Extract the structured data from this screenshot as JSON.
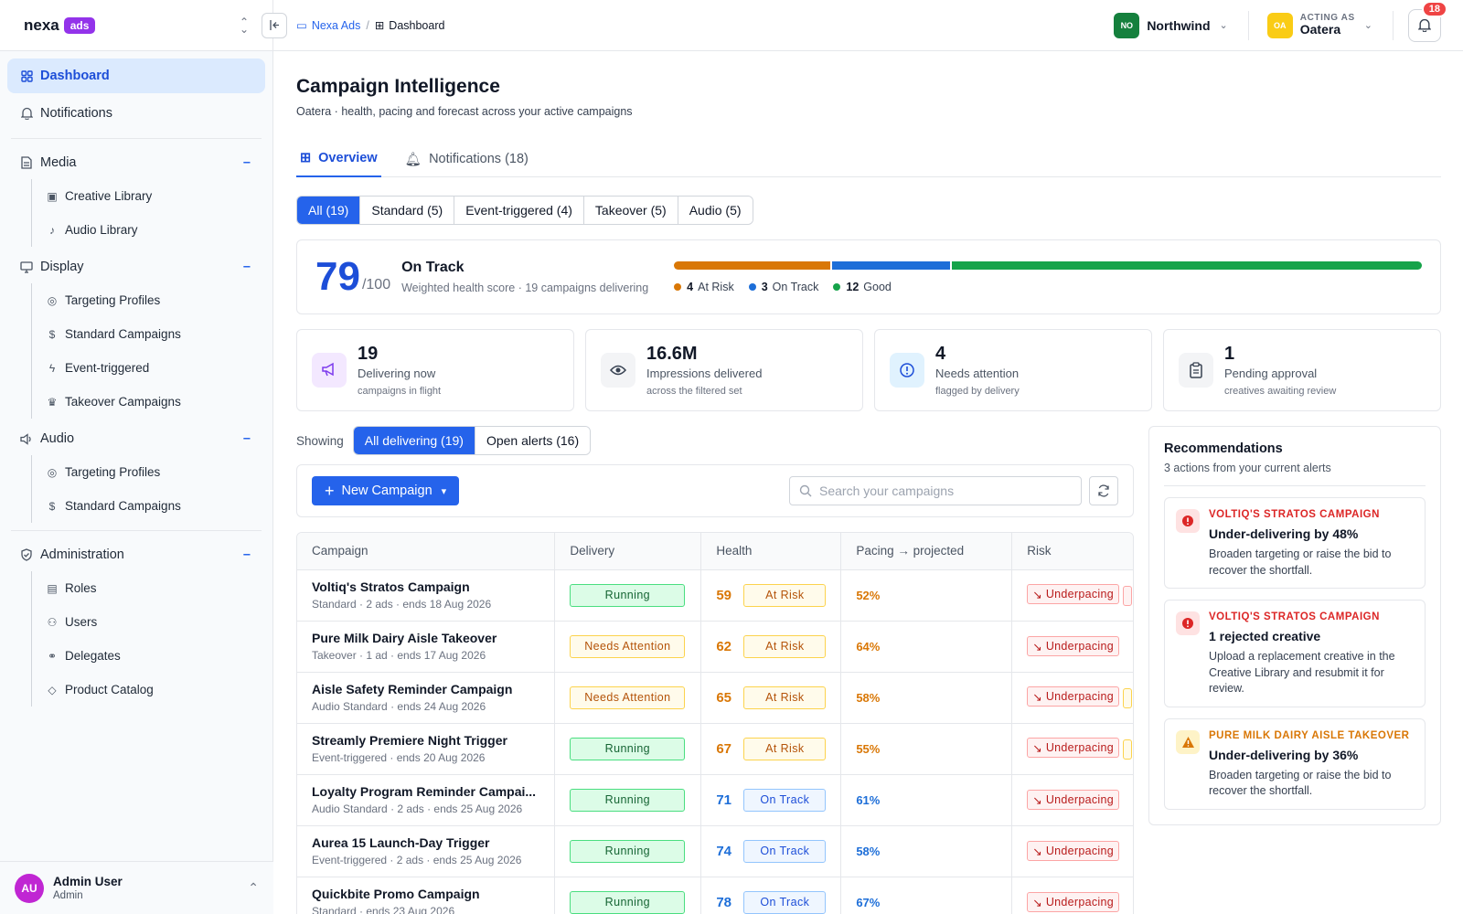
{
  "brand": {
    "name": "nexa",
    "badge": "ads"
  },
  "sidebar": {
    "top": [
      {
        "label": "Dashboard",
        "icon": "grid-icon",
        "active": true
      },
      {
        "label": "Notifications",
        "icon": "bell-icon"
      }
    ],
    "groups": [
      {
        "label": "Media",
        "icon": "document-icon",
        "items": [
          {
            "label": "Creative Library",
            "icon": "image-icon"
          },
          {
            "label": "Audio Library",
            "icon": "music-note-icon"
          }
        ]
      },
      {
        "label": "Display",
        "icon": "monitor-icon",
        "items": [
          {
            "label": "Targeting Profiles",
            "icon": "target-icon"
          },
          {
            "label": "Standard Campaigns",
            "icon": "dollar-icon"
          },
          {
            "label": "Event-triggered",
            "icon": "bolt-icon"
          },
          {
            "label": "Takeover Campaigns",
            "icon": "crown-icon"
          }
        ]
      },
      {
        "label": "Audio",
        "icon": "speaker-icon",
        "items": [
          {
            "label": "Targeting Profiles",
            "icon": "target-icon"
          },
          {
            "label": "Standard Campaigns",
            "icon": "dollar-icon"
          }
        ]
      },
      {
        "label": "Administration",
        "icon": "shield-check-icon",
        "items": [
          {
            "label": "Roles",
            "icon": "id-card-icon"
          },
          {
            "label": "Users",
            "icon": "users-icon"
          },
          {
            "label": "Delegates",
            "icon": "handshake-icon"
          },
          {
            "label": "Product Catalog",
            "icon": "tag-icon"
          }
        ]
      }
    ],
    "user": {
      "initials": "AU",
      "name": "Admin User",
      "role": "Admin"
    }
  },
  "topbar": {
    "breadcrumb": {
      "parent": "Nexa Ads",
      "current": "Dashboard"
    },
    "org": {
      "initials": "NO",
      "name": "Northwind"
    },
    "acting": {
      "label": "ACTING AS",
      "initials": "OA",
      "name": "Oatera"
    },
    "notifications_count": "18"
  },
  "page": {
    "title": "Campaign Intelligence",
    "subtitle": "Oatera · health, pacing and forecast across your active campaigns",
    "tabs": [
      {
        "label": "Overview",
        "active": true
      },
      {
        "label": "Notifications (18)"
      }
    ],
    "filters": [
      {
        "label": "All (19)",
        "active": true
      },
      {
        "label": "Standard (5)"
      },
      {
        "label": "Event-triggered (4)"
      },
      {
        "label": "Takeover (5)"
      },
      {
        "label": "Audio (5)"
      }
    ]
  },
  "health": {
    "score": "79",
    "out_of": "/100",
    "status": "On Track",
    "description": "Weighted health score · 19 campaigns delivering",
    "segments": [
      {
        "count": 4,
        "count_label": "4",
        "label": "At Risk",
        "color": "#d97706"
      },
      {
        "count": 3,
        "count_label": "3",
        "label": "On Track",
        "color": "#1d6ed8"
      },
      {
        "count": 12,
        "count_label": "12",
        "label": "Good",
        "color": "#16a34a"
      }
    ]
  },
  "stats": [
    {
      "value": "19",
      "label": "Delivering now",
      "sub": "campaigns in flight",
      "icon": "megaphone-icon",
      "color": "#7c3aed",
      "bg": "#f3e8ff"
    },
    {
      "value": "16.6M",
      "label": "Impressions delivered",
      "sub": "across the filtered set",
      "icon": "eye-icon",
      "color": "#374151",
      "bg": "#f3f4f6"
    },
    {
      "value": "4",
      "label": "Needs attention",
      "sub": "flagged by delivery",
      "icon": "alert-circle-icon",
      "color": "#1d4ed8",
      "bg": "#e0f2fe"
    },
    {
      "value": "1",
      "label": "Pending approval",
      "sub": "creatives awaiting review",
      "icon": "clipboard-icon",
      "color": "#374151",
      "bg": "#f3f4f6"
    }
  ],
  "showing": {
    "label": "Showing",
    "options": [
      {
        "label": "All delivering (19)",
        "active": true
      },
      {
        "label": "Open alerts (16)"
      }
    ]
  },
  "toolbar": {
    "new_label": "New Campaign",
    "search_placeholder": "Search your campaigns"
  },
  "table": {
    "columns": [
      "Campaign",
      "Delivery",
      "Health",
      "Pacing → projected",
      "Risk"
    ],
    "rows": [
      {
        "name": "Voltiq's Stratos Campaign",
        "meta": "Standard · 2 ads · ends 18 Aug 2026",
        "delivery": "Running",
        "health": "59",
        "health_label": "At Risk",
        "pacing": "52%",
        "risk": "Underpacing",
        "extra": "red"
      },
      {
        "name": "Pure Milk Dairy Aisle Takeover",
        "meta": "Takeover · 1 ad · ends 17 Aug 2026",
        "delivery": "Needs Attention",
        "health": "62",
        "health_label": "At Risk",
        "pacing": "64%",
        "risk": "Underpacing",
        "extra": ""
      },
      {
        "name": "Aisle Safety Reminder Campaign",
        "meta": "Audio Standard · ends 24 Aug 2026",
        "delivery": "Needs Attention",
        "health": "65",
        "health_label": "At Risk",
        "pacing": "58%",
        "risk": "Underpacing",
        "extra": "amber"
      },
      {
        "name": "Streamly Premiere Night Trigger",
        "meta": "Event-triggered · ends 20 Aug 2026",
        "delivery": "Running",
        "health": "67",
        "health_label": "At Risk",
        "pacing": "55%",
        "risk": "Underpacing",
        "extra": "amber"
      },
      {
        "name": "Loyalty Program Reminder Campai...",
        "meta": "Audio Standard · 2 ads · ends 25 Aug 2026",
        "delivery": "Running",
        "health": "71",
        "health_label": "On Track",
        "pacing": "61%",
        "risk": "Underpacing",
        "extra": ""
      },
      {
        "name": "Aurea 15 Launch-Day Trigger",
        "meta": "Event-triggered · 2 ads · ends 25 Aug 2026",
        "delivery": "Running",
        "health": "74",
        "health_label": "On Track",
        "pacing": "58%",
        "risk": "Underpacing",
        "extra": ""
      },
      {
        "name": "Quickbite Promo Campaign",
        "meta": "Standard · ends 23 Aug 2026",
        "delivery": "Running",
        "health": "78",
        "health_label": "On Track",
        "pacing": "67%",
        "risk": "Underpacing",
        "extra": ""
      }
    ]
  },
  "recommendations": {
    "title": "Recommendations",
    "subtitle": "3 actions from your current alerts",
    "items": [
      {
        "severity": "red",
        "campaign": "VOLTIQ'S STRATOS CAMPAIGN",
        "headline": "Under-delivering by 48%",
        "text": "Broaden targeting or raise the bid to recover the shortfall."
      },
      {
        "severity": "red",
        "campaign": "VOLTIQ'S STRATOS CAMPAIGN",
        "headline": "1 rejected creative",
        "text": "Upload a replacement creative in the Creative Library and resubmit it for review."
      },
      {
        "severity": "amber",
        "campaign": "PURE MILK DAIRY AISLE TAKEOVER",
        "headline": "Under-delivering by 36%",
        "text": "Broaden targeting or raise the bid to recover the shortfall."
      }
    ]
  }
}
